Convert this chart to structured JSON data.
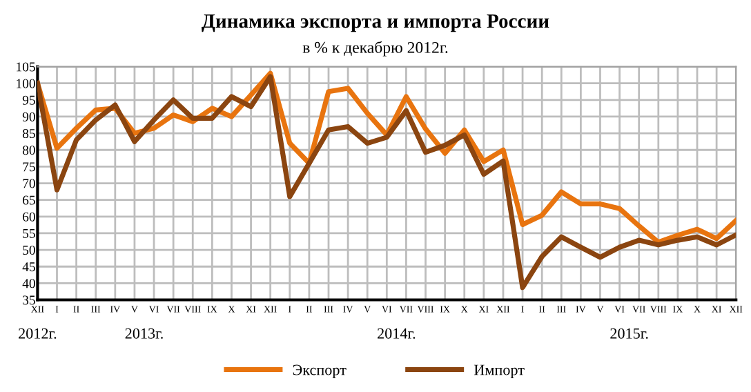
{
  "chart_data": {
    "type": "line",
    "title": "Динамика экспорта и импорта России",
    "subtitle": "в % к декабрю 2012г.",
    "categories": [
      "XII",
      "I",
      "II",
      "III",
      "IV",
      "V",
      "VI",
      "VII",
      "VIII",
      "IX",
      "X",
      "XI",
      "XII",
      "I",
      "II",
      "III",
      "IV",
      "V",
      "VI",
      "VII",
      "VIII",
      "IX",
      "X",
      "XI",
      "XII",
      "I",
      "II",
      "III",
      "IV",
      "V",
      "VI",
      "VII",
      "VIII",
      "IX",
      "X",
      "XI",
      "XII"
    ],
    "series": [
      {
        "name": "Экспорт",
        "color": "#e8740f",
        "values": [
          100,
          80.5,
          86.5,
          92,
          92.5,
          85,
          86.5,
          90.5,
          88.5,
          92.5,
          90,
          96.5,
          103,
          82,
          76,
          97.5,
          98.5,
          91,
          84.5,
          96,
          86.3,
          79,
          86,
          76.5,
          80,
          57.6,
          60.4,
          67.4,
          63.8,
          63.8,
          62.4,
          57.2,
          52.3,
          54.4,
          56.2,
          53.4,
          58.8
        ]
      },
      {
        "name": "Импорт",
        "color": "#8b4510",
        "values": [
          100,
          68,
          83,
          89,
          93.5,
          82.5,
          89,
          95,
          89.5,
          89.5,
          96,
          93,
          102,
          66,
          76,
          86,
          87,
          82,
          83.8,
          91.8,
          79.3,
          81.4,
          84.5,
          72.7,
          76.7,
          38.7,
          48,
          53.9,
          50.8,
          47.8,
          50.8,
          52.9,
          51.5,
          52.9,
          53.9,
          51.5,
          54.5
        ]
      }
    ],
    "ylim": [
      35,
      105
    ],
    "yticks": [
      35,
      40,
      45,
      50,
      55,
      60,
      65,
      70,
      75,
      80,
      85,
      90,
      95,
      100,
      105
    ],
    "grid": true,
    "legend": "bottom",
    "marker": "none",
    "line_style": "solid",
    "annotations": [
      "2012г.",
      "2013г.",
      "2014г.",
      "2015г."
    ]
  }
}
